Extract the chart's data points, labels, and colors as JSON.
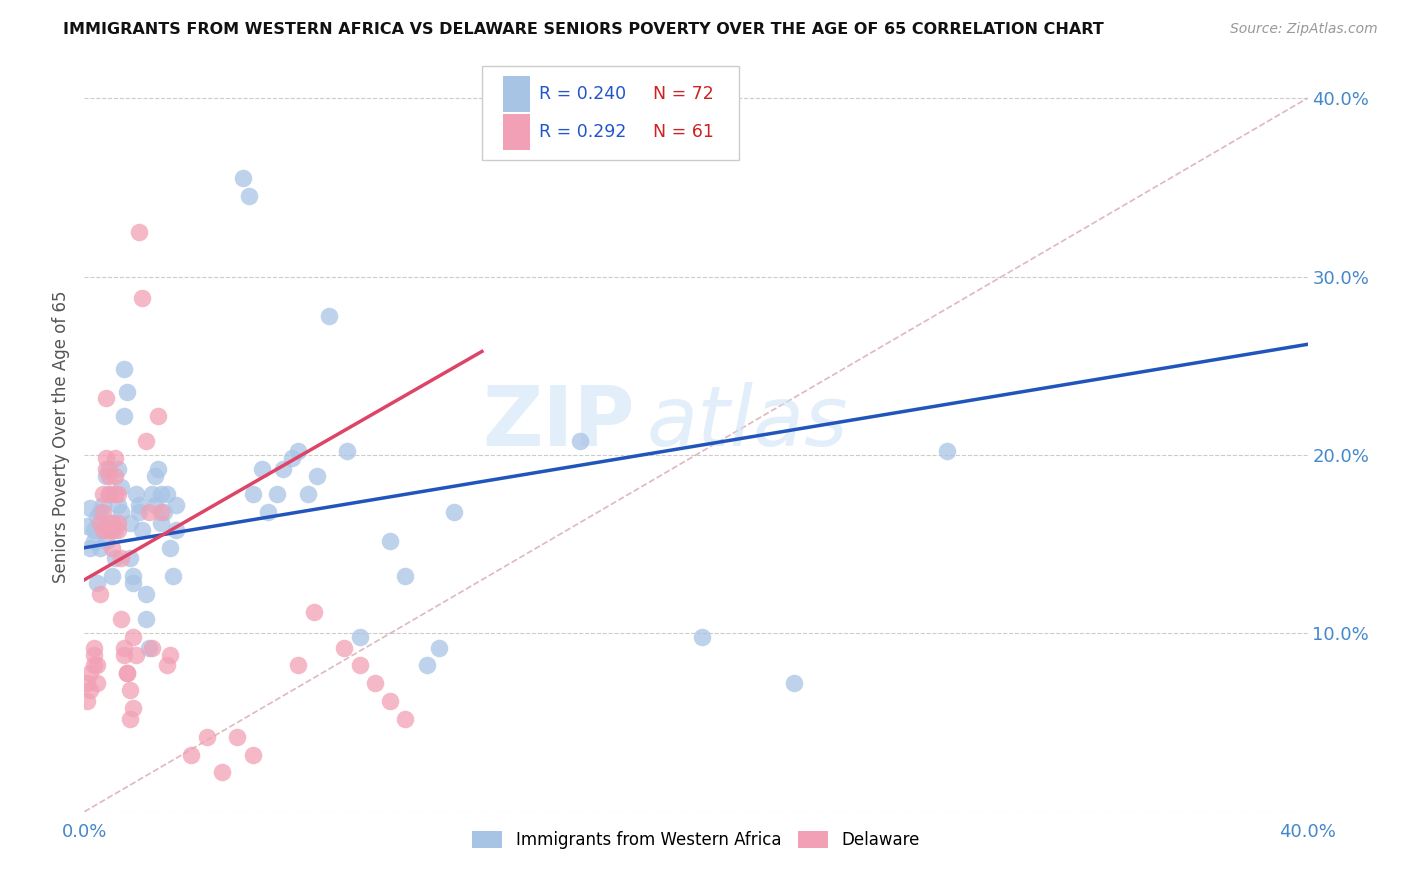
{
  "title": "IMMIGRANTS FROM WESTERN AFRICA VS DELAWARE SENIORS POVERTY OVER THE AGE OF 65 CORRELATION CHART",
  "source": "Source: ZipAtlas.com",
  "ylabel": "Seniors Poverty Over the Age of 65",
  "xlim": [
    0.0,
    0.4
  ],
  "ylim": [
    0.0,
    0.42
  ],
  "legend_blue_R": "0.240",
  "legend_blue_N": "72",
  "legend_pink_R": "0.292",
  "legend_pink_N": "61",
  "watermark_zip": "ZIP",
  "watermark_atlas": "atlas",
  "blue_color": "#a8c4e5",
  "pink_color": "#f2a0b5",
  "blue_line_color": "#2255bb",
  "pink_line_color": "#dd4466",
  "diag_line_color": "#ddb0b8",
  "blue_line_x": [
    0.0,
    0.4
  ],
  "blue_line_y": [
    0.148,
    0.262
  ],
  "pink_line_x": [
    0.0,
    0.13
  ],
  "pink_line_y": [
    0.13,
    0.258
  ],
  "diag_line_x": [
    0.0,
    0.4
  ],
  "diag_line_y": [
    0.0,
    0.4
  ],
  "blue_scatter": [
    [
      0.001,
      0.16
    ],
    [
      0.002,
      0.148
    ],
    [
      0.002,
      0.17
    ],
    [
      0.003,
      0.158
    ],
    [
      0.003,
      0.152
    ],
    [
      0.004,
      0.165
    ],
    [
      0.004,
      0.128
    ],
    [
      0.005,
      0.148
    ],
    [
      0.005,
      0.168
    ],
    [
      0.006,
      0.158
    ],
    [
      0.006,
      0.172
    ],
    [
      0.007,
      0.152
    ],
    [
      0.007,
      0.188
    ],
    [
      0.008,
      0.192
    ],
    [
      0.008,
      0.178
    ],
    [
      0.009,
      0.132
    ],
    [
      0.009,
      0.162
    ],
    [
      0.01,
      0.158
    ],
    [
      0.01,
      0.142
    ],
    [
      0.011,
      0.192
    ],
    [
      0.011,
      0.172
    ],
    [
      0.012,
      0.168
    ],
    [
      0.012,
      0.182
    ],
    [
      0.013,
      0.248
    ],
    [
      0.013,
      0.222
    ],
    [
      0.014,
      0.235
    ],
    [
      0.015,
      0.162
    ],
    [
      0.015,
      0.142
    ],
    [
      0.016,
      0.132
    ],
    [
      0.016,
      0.128
    ],
    [
      0.017,
      0.178
    ],
    [
      0.018,
      0.168
    ],
    [
      0.018,
      0.172
    ],
    [
      0.019,
      0.158
    ],
    [
      0.02,
      0.122
    ],
    [
      0.02,
      0.108
    ],
    [
      0.021,
      0.092
    ],
    [
      0.022,
      0.178
    ],
    [
      0.023,
      0.172
    ],
    [
      0.023,
      0.188
    ],
    [
      0.024,
      0.192
    ],
    [
      0.025,
      0.178
    ],
    [
      0.025,
      0.162
    ],
    [
      0.026,
      0.168
    ],
    [
      0.027,
      0.178
    ],
    [
      0.028,
      0.148
    ],
    [
      0.029,
      0.132
    ],
    [
      0.03,
      0.158
    ],
    [
      0.03,
      0.172
    ],
    [
      0.052,
      0.355
    ],
    [
      0.054,
      0.345
    ],
    [
      0.055,
      0.178
    ],
    [
      0.058,
      0.192
    ],
    [
      0.06,
      0.168
    ],
    [
      0.063,
      0.178
    ],
    [
      0.065,
      0.192
    ],
    [
      0.068,
      0.198
    ],
    [
      0.07,
      0.202
    ],
    [
      0.073,
      0.178
    ],
    [
      0.076,
      0.188
    ],
    [
      0.08,
      0.278
    ],
    [
      0.086,
      0.202
    ],
    [
      0.09,
      0.098
    ],
    [
      0.1,
      0.152
    ],
    [
      0.105,
      0.132
    ],
    [
      0.112,
      0.082
    ],
    [
      0.116,
      0.092
    ],
    [
      0.121,
      0.168
    ],
    [
      0.162,
      0.208
    ],
    [
      0.202,
      0.098
    ],
    [
      0.232,
      0.072
    ],
    [
      0.282,
      0.202
    ]
  ],
  "pink_scatter": [
    [
      0.001,
      0.072
    ],
    [
      0.001,
      0.062
    ],
    [
      0.002,
      0.068
    ],
    [
      0.002,
      0.078
    ],
    [
      0.003,
      0.088
    ],
    [
      0.003,
      0.082
    ],
    [
      0.003,
      0.092
    ],
    [
      0.004,
      0.082
    ],
    [
      0.004,
      0.072
    ],
    [
      0.005,
      0.122
    ],
    [
      0.005,
      0.162
    ],
    [
      0.006,
      0.168
    ],
    [
      0.006,
      0.158
    ],
    [
      0.006,
      0.178
    ],
    [
      0.007,
      0.192
    ],
    [
      0.007,
      0.232
    ],
    [
      0.007,
      0.198
    ],
    [
      0.008,
      0.158
    ],
    [
      0.008,
      0.188
    ],
    [
      0.008,
      0.178
    ],
    [
      0.009,
      0.158
    ],
    [
      0.009,
      0.148
    ],
    [
      0.009,
      0.162
    ],
    [
      0.01,
      0.188
    ],
    [
      0.01,
      0.178
    ],
    [
      0.01,
      0.198
    ],
    [
      0.011,
      0.178
    ],
    [
      0.011,
      0.162
    ],
    [
      0.011,
      0.158
    ],
    [
      0.012,
      0.142
    ],
    [
      0.012,
      0.108
    ],
    [
      0.013,
      0.092
    ],
    [
      0.013,
      0.088
    ],
    [
      0.014,
      0.078
    ],
    [
      0.014,
      0.078
    ],
    [
      0.015,
      0.068
    ],
    [
      0.015,
      0.052
    ],
    [
      0.016,
      0.058
    ],
    [
      0.016,
      0.098
    ],
    [
      0.017,
      0.088
    ],
    [
      0.018,
      0.325
    ],
    [
      0.019,
      0.288
    ],
    [
      0.02,
      0.208
    ],
    [
      0.021,
      0.168
    ],
    [
      0.022,
      0.092
    ],
    [
      0.024,
      0.222
    ],
    [
      0.025,
      0.168
    ],
    [
      0.027,
      0.082
    ],
    [
      0.028,
      0.088
    ],
    [
      0.035,
      0.032
    ],
    [
      0.04,
      0.042
    ],
    [
      0.045,
      0.022
    ],
    [
      0.05,
      0.042
    ],
    [
      0.055,
      0.032
    ],
    [
      0.07,
      0.082
    ],
    [
      0.075,
      0.112
    ],
    [
      0.085,
      0.092
    ],
    [
      0.09,
      0.082
    ],
    [
      0.095,
      0.072
    ],
    [
      0.1,
      0.062
    ],
    [
      0.105,
      0.052
    ]
  ]
}
